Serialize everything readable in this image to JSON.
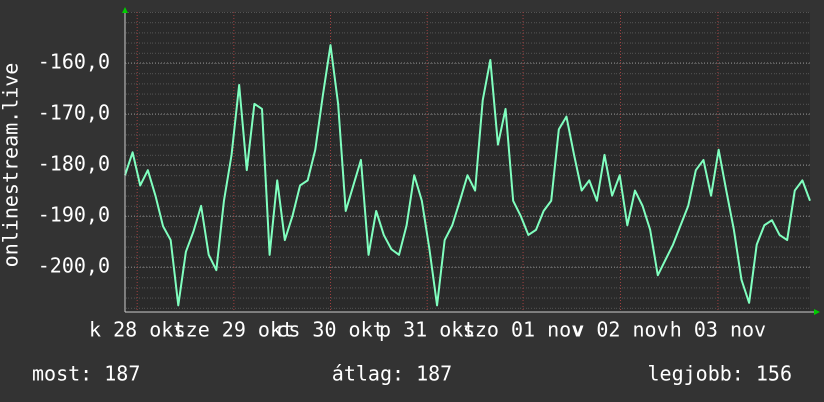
{
  "chart_data": {
    "type": "line",
    "y_label": "onlinestream.live",
    "x": [
      0,
      1,
      2,
      3,
      4,
      5,
      6,
      7,
      8,
      9,
      10,
      11,
      12,
      13,
      14,
      15,
      16,
      17,
      18,
      19,
      20,
      21,
      22,
      23,
      24,
      25,
      26,
      27,
      28,
      29,
      30,
      31,
      32,
      33,
      34,
      35,
      36,
      37,
      38,
      39,
      40,
      41,
      42,
      43,
      44,
      45,
      46,
      47,
      48,
      49,
      50,
      51,
      52,
      53,
      54,
      55,
      56,
      57,
      58,
      59,
      60,
      61,
      62,
      63,
      64,
      65,
      66,
      67,
      68,
      69,
      70,
      71,
      72,
      73,
      74,
      75,
      76,
      77,
      78,
      79,
      80,
      81,
      82,
      83,
      84,
      85,
      86,
      87,
      88,
      89,
      90
    ],
    "series": [
      {
        "color": "#80ffbf",
        "values": [
          -182,
          -177.5,
          -184,
          -181,
          -186,
          -192,
          -194.7,
          -207.5,
          -197,
          -193,
          -188,
          -197.6,
          -200.6,
          -187,
          -178,
          -164.3,
          -181,
          -168,
          -169,
          -197.6,
          -183,
          -194.7,
          -190,
          -184,
          -183,
          -177,
          -166.3,
          -156.5,
          -168,
          -189,
          -184,
          -179,
          -197.6,
          -189,
          -193.7,
          -196.5,
          -197.6,
          -191.8,
          -182,
          -187,
          -196.5,
          -207.5,
          -194.7,
          -191.8,
          -187,
          -182,
          -185,
          -167.3,
          -159.4,
          -176,
          -169,
          -187,
          -190,
          -193.7,
          -192.7,
          -189,
          -187,
          -173,
          -170.5,
          -178,
          -185,
          -183,
          -187,
          -178,
          -186,
          -182,
          -191.8,
          -185,
          -188,
          -192.7,
          -201.6,
          -198.6,
          -195.6,
          -191.8,
          -188,
          -181,
          -179,
          -186,
          -177,
          -185,
          -192.7,
          -202.5,
          -207,
          -195.6,
          -191.8,
          -190.8,
          -193.7,
          -194.7,
          -185,
          -183,
          -187
        ]
      }
    ],
    "xlim": [
      0,
      90
    ],
    "xticks": [
      {
        "value": 1.6,
        "label": "k 28 okt"
      },
      {
        "value": 14.3,
        "label": "sze 29 okt"
      },
      {
        "value": 27,
        "label": "cs 30 okt"
      },
      {
        "value": 39.7,
        "label": "p 31 okt"
      },
      {
        "value": 52.3,
        "label": "szo 01 nov"
      },
      {
        "value": 65.1,
        "label": "v 02 nov"
      },
      {
        "value": 77.9,
        "label": "h 03 nov"
      }
    ],
    "ylim": [
      -208.8,
      -150
    ],
    "yticks": [
      {
        "value": -160,
        "label": "-160,0"
      },
      {
        "value": -170,
        "label": "-170,0"
      },
      {
        "value": -180,
        "label": "-180,0"
      },
      {
        "value": -190,
        "label": "-190,0"
      },
      {
        "value": -200,
        "label": "-200,0"
      }
    ],
    "grid": true,
    "stats": [
      "most: 187",
      "átlag: 187",
      "legjobb: 156"
    ]
  }
}
